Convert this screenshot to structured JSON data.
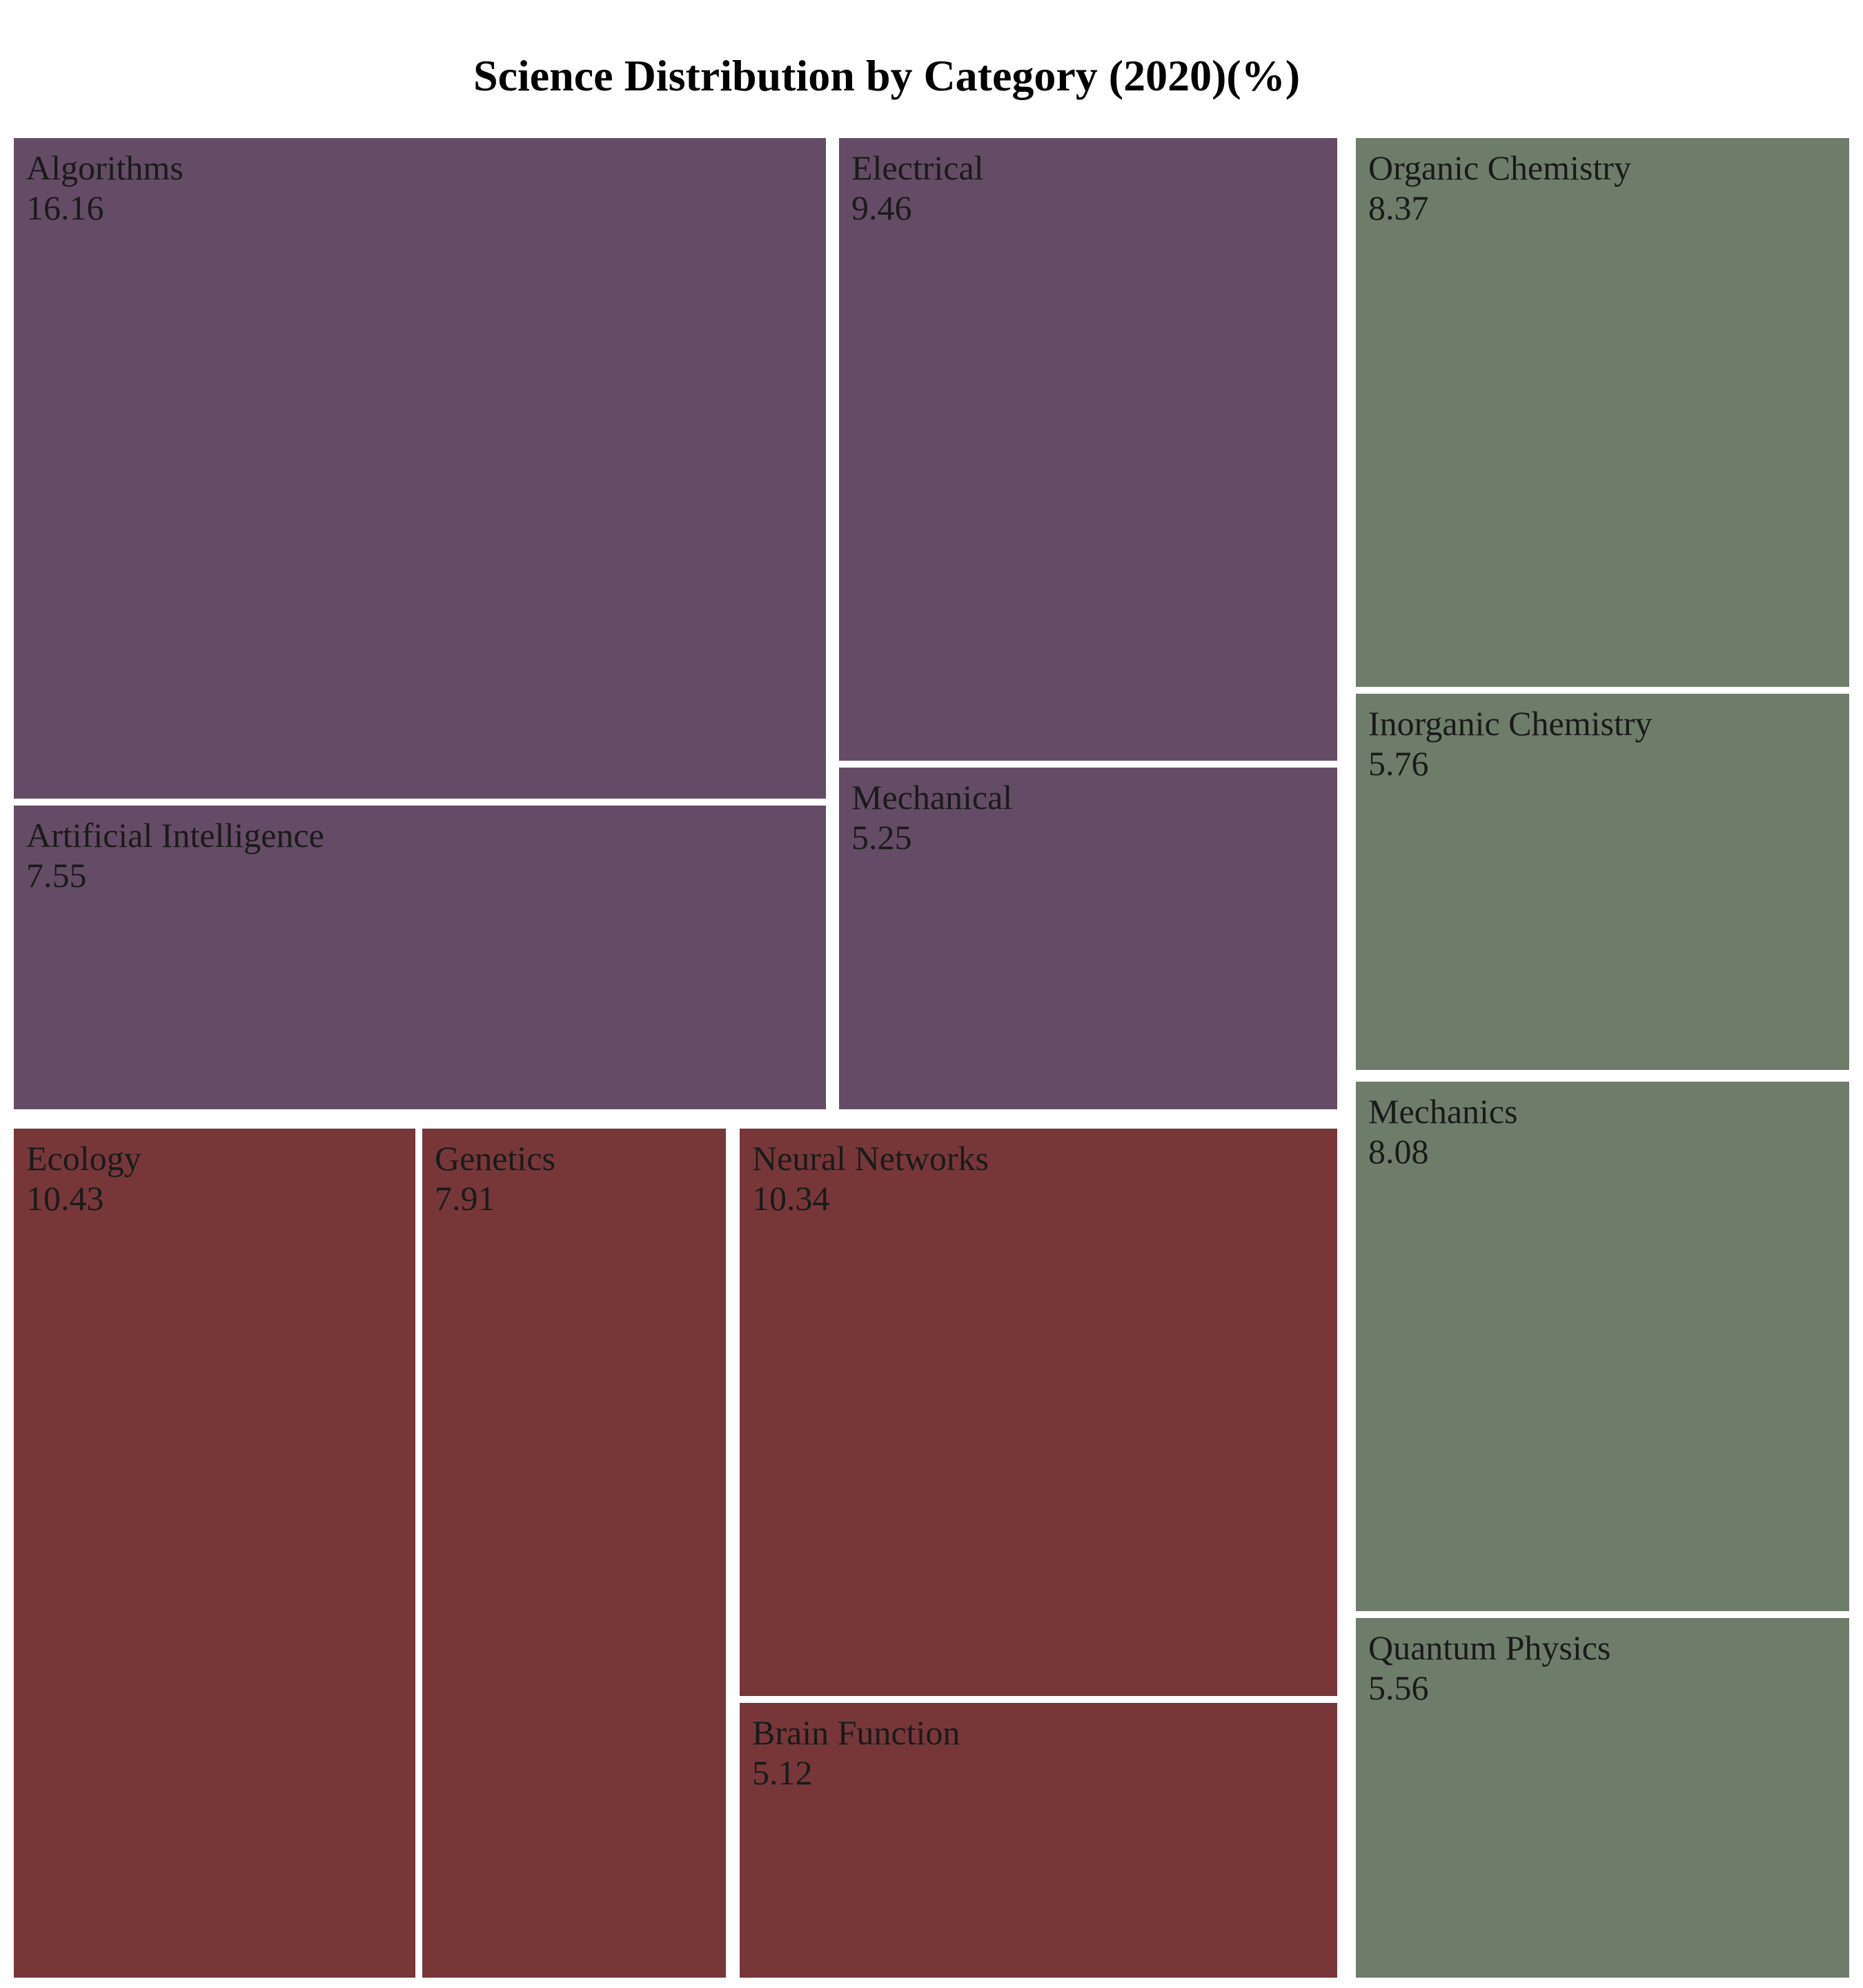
{
  "chart_data": {
    "type": "treemap",
    "title": "Science Distribution by Category (2020)(%)",
    "xlabel": "",
    "ylabel": "",
    "groups": [
      {
        "color": "#654C66",
        "items": [
          {
            "label": "Algorithms",
            "value": 16.16
          },
          {
            "label": "Artificial Intelligence",
            "value": 7.55
          },
          {
            "label": "Electrical",
            "value": 9.46
          },
          {
            "label": "Mechanical",
            "value": 5.25
          }
        ]
      },
      {
        "color": "#773739",
        "items": [
          {
            "label": "Ecology",
            "value": 10.43
          },
          {
            "label": "Genetics",
            "value": 7.91
          },
          {
            "label": "Neural Networks",
            "value": 10.34
          },
          {
            "label": "Brain Function",
            "value": 5.12
          }
        ]
      },
      {
        "color": "#6E7D6A",
        "items": [
          {
            "label": "Organic Chemistry",
            "value": 8.37
          },
          {
            "label": "Inorganic Chemistry",
            "value": 5.76
          },
          {
            "label": "Mechanics",
            "value": 8.08
          },
          {
            "label": "Quantum Physics",
            "value": 5.56
          }
        ]
      }
    ]
  }
}
